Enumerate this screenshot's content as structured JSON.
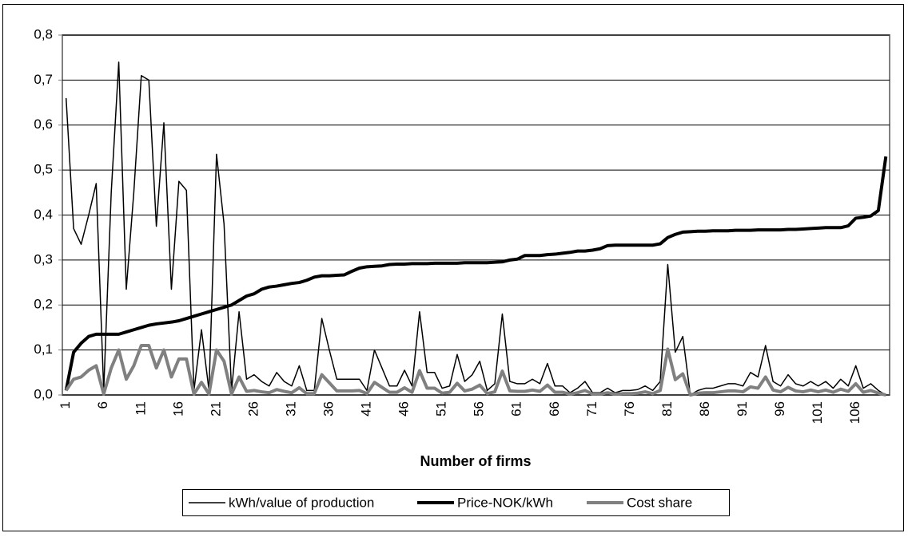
{
  "chart_data": {
    "type": "line",
    "x_label": "Number of firms",
    "categories": [
      "1",
      null,
      null,
      null,
      null,
      "6",
      null,
      null,
      null,
      null,
      "11",
      null,
      null,
      null,
      null,
      "16",
      null,
      null,
      null,
      null,
      "21",
      null,
      null,
      null,
      null,
      "26",
      null,
      null,
      null,
      null,
      "31",
      null,
      null,
      null,
      null,
      "36",
      null,
      null,
      null,
      null,
      "41",
      null,
      null,
      null,
      null,
      "46",
      null,
      null,
      null,
      null,
      "51",
      null,
      null,
      null,
      null,
      "56",
      null,
      null,
      null,
      null,
      "61",
      null,
      null,
      null,
      null,
      "66",
      null,
      null,
      null,
      null,
      "71",
      null,
      null,
      null,
      null,
      "76",
      null,
      null,
      null,
      null,
      "81",
      null,
      null,
      null,
      null,
      "86",
      null,
      null,
      null,
      null,
      "91",
      null,
      null,
      null,
      null,
      "96",
      null,
      null,
      null,
      null,
      "101",
      null,
      null,
      null,
      null,
      "106",
      null,
      null,
      null,
      null
    ],
    "series": [
      {
        "name": "kWh/value of production",
        "color": "#000000",
        "line_width": 1.5,
        "values": [
          0.66,
          0.37,
          0.335,
          0.4,
          0.47,
          0.01,
          0.45,
          0.74,
          0.235,
          0.45,
          0.71,
          0.7,
          0.375,
          0.605,
          0.235,
          0.475,
          0.455,
          0.01,
          0.145,
          0.01,
          0.535,
          0.38,
          0.01,
          0.185,
          0.035,
          0.045,
          0.03,
          0.02,
          0.05,
          0.03,
          0.02,
          0.065,
          0.01,
          0.01,
          0.17,
          0.1,
          0.035,
          0.035,
          0.035,
          0.035,
          0.01,
          0.1,
          0.06,
          0.02,
          0.02,
          0.055,
          0.02,
          0.185,
          0.05,
          0.05,
          0.015,
          0.02,
          0.09,
          0.03,
          0.045,
          0.075,
          0.01,
          0.025,
          0.18,
          0.03,
          0.025,
          0.025,
          0.035,
          0.025,
          0.07,
          0.02,
          0.02,
          0.005,
          0.015,
          0.03,
          0.005,
          0.005,
          0.015,
          0.005,
          0.01,
          0.01,
          0.012,
          0.02,
          0.01,
          0.03,
          0.29,
          0.095,
          0.13,
          0.0,
          0.01,
          0.015,
          0.015,
          0.02,
          0.025,
          0.025,
          0.02,
          0.05,
          0.04,
          0.11,
          0.03,
          0.02,
          0.045,
          0.025,
          0.02,
          0.03,
          0.02,
          0.03,
          0.015,
          0.035,
          0.02,
          0.065,
          0.015,
          0.025,
          0.01,
          0.0
        ]
      },
      {
        "name": "Price-NOK/kWh",
        "color": "#000000",
        "line_width": 4,
        "values": [
          0.01,
          0.095,
          0.115,
          0.13,
          0.135,
          0.135,
          0.135,
          0.135,
          0.14,
          0.145,
          0.15,
          0.155,
          0.158,
          0.16,
          0.162,
          0.165,
          0.17,
          0.175,
          0.18,
          0.185,
          0.19,
          0.195,
          0.2,
          0.21,
          0.22,
          0.225,
          0.235,
          0.24,
          0.242,
          0.245,
          0.248,
          0.25,
          0.255,
          0.262,
          0.265,
          0.265,
          0.266,
          0.267,
          0.275,
          0.282,
          0.285,
          0.286,
          0.287,
          0.29,
          0.291,
          0.291,
          0.292,
          0.292,
          0.292,
          0.293,
          0.293,
          0.293,
          0.293,
          0.294,
          0.294,
          0.294,
          0.294,
          0.295,
          0.296,
          0.3,
          0.302,
          0.31,
          0.31,
          0.31,
          0.312,
          0.313,
          0.315,
          0.317,
          0.32,
          0.32,
          0.322,
          0.325,
          0.332,
          0.333,
          0.333,
          0.333,
          0.333,
          0.333,
          0.333,
          0.336,
          0.35,
          0.357,
          0.362,
          0.363,
          0.364,
          0.364,
          0.365,
          0.365,
          0.365,
          0.366,
          0.366,
          0.366,
          0.367,
          0.367,
          0.367,
          0.367,
          0.368,
          0.368,
          0.369,
          0.37,
          0.371,
          0.372,
          0.372,
          0.372,
          0.376,
          0.393,
          0.395,
          0.398,
          0.41,
          0.53
        ]
      },
      {
        "name": "Cost share",
        "color": "#808080",
        "line_width": 4,
        "values": [
          0.01,
          0.035,
          0.04,
          0.055,
          0.065,
          0.002,
          0.06,
          0.1,
          0.035,
          0.065,
          0.11,
          0.11,
          0.06,
          0.1,
          0.04,
          0.08,
          0.08,
          0.002,
          0.028,
          0.002,
          0.1,
          0.075,
          0.002,
          0.04,
          0.008,
          0.01,
          0.007,
          0.005,
          0.012,
          0.008,
          0.005,
          0.016,
          0.003,
          0.003,
          0.045,
          0.027,
          0.009,
          0.009,
          0.009,
          0.01,
          0.003,
          0.028,
          0.017,
          0.006,
          0.006,
          0.016,
          0.006,
          0.054,
          0.015,
          0.015,
          0.004,
          0.006,
          0.026,
          0.009,
          0.013,
          0.022,
          0.003,
          0.007,
          0.053,
          0.009,
          0.008,
          0.008,
          0.011,
          0.008,
          0.022,
          0.006,
          0.006,
          0.002,
          0.005,
          0.01,
          0.002,
          0.002,
          0.005,
          0.002,
          0.003,
          0.003,
          0.004,
          0.007,
          0.003,
          0.01,
          0.102,
          0.034,
          0.047,
          0.0,
          0.004,
          0.005,
          0.005,
          0.007,
          0.009,
          0.009,
          0.007,
          0.018,
          0.015,
          0.04,
          0.011,
          0.007,
          0.017,
          0.009,
          0.007,
          0.011,
          0.007,
          0.011,
          0.006,
          0.013,
          0.008,
          0.025,
          0.006,
          0.01,
          0.004,
          0.0
        ]
      }
    ],
    "ylim": [
      0,
      0.8
    ],
    "yticks": [
      {
        "value": 0,
        "label": "0,0"
      },
      {
        "value": 0.1,
        "label": "0,1"
      },
      {
        "value": 0.2,
        "label": "0,2"
      },
      {
        "value": 0.3,
        "label": "0,3"
      },
      {
        "value": 0.4,
        "label": "0,4"
      },
      {
        "value": 0.5,
        "label": "0,5"
      },
      {
        "value": 0.6,
        "label": "0,6"
      },
      {
        "value": 0.7,
        "label": "0,7"
      },
      {
        "value": 0.8,
        "label": "0,8"
      }
    ],
    "grid": true,
    "legend": "bottom"
  }
}
